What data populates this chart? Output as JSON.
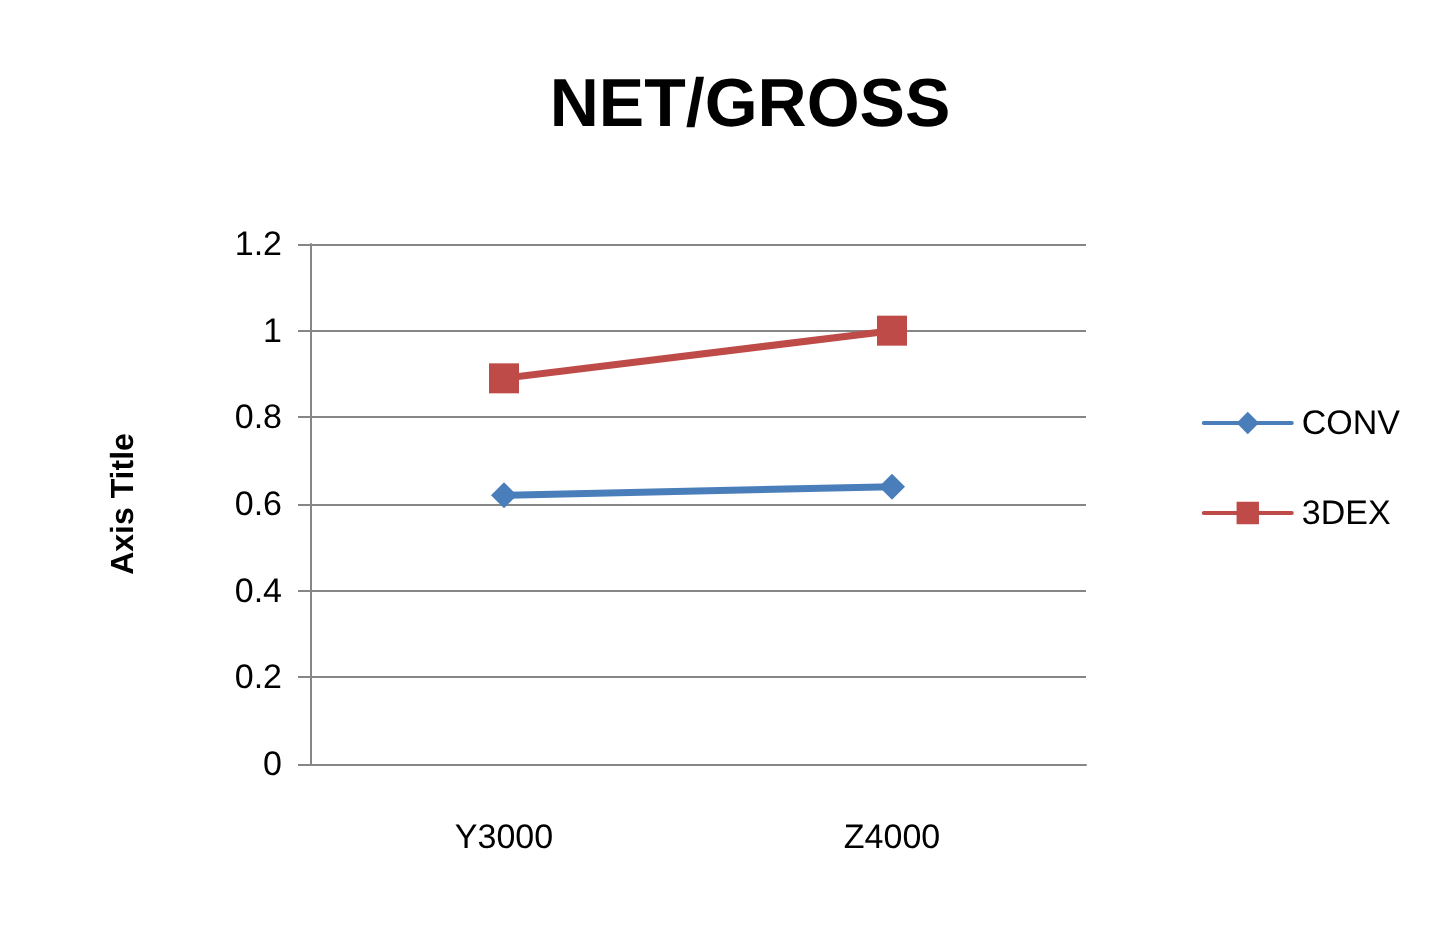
{
  "chart_data": {
    "type": "line",
    "title": "NET/GROSS",
    "ylabel": "Axis Title",
    "categories": [
      "Y3000",
      "Z4000"
    ],
    "series": [
      {
        "name": "CONV",
        "color": "#4a7ebb",
        "marker": "diamond",
        "values": [
          0.62,
          0.64
        ]
      },
      {
        "name": "3DEX",
        "color": "#be4b48",
        "marker": "square",
        "values": [
          0.89,
          1.0
        ]
      }
    ],
    "ylim": [
      0,
      1.2
    ],
    "yticks": [
      0,
      0.2,
      0.4,
      0.6,
      0.8,
      1,
      1.2
    ],
    "grid": "y",
    "legend": "right"
  }
}
